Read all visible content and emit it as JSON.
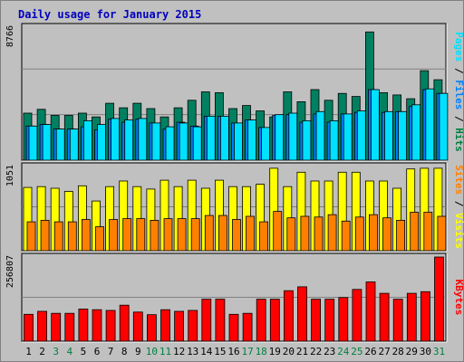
{
  "chart_data": [
    {
      "type": "bar",
      "title": "Daily usage for January 2015",
      "panel": "top",
      "ymax_label": "8766",
      "ylim": [
        0,
        8766
      ],
      "grid": true,
      "legend": [
        {
          "name": "Pages",
          "color": "#00E0FF"
        },
        {
          "name": "Files",
          "color": "#0080FF"
        },
        {
          "name": "Hits",
          "color": "#008040"
        }
      ],
      "series": [
        {
          "name": "Hits",
          "color": "#008060",
          "values": [
            3100,
            3350,
            2950,
            2950,
            3100,
            2850,
            3750,
            3450,
            3750,
            3400,
            2850,
            3450,
            3950,
            4500,
            4450,
            3400,
            3600,
            3250,
            2850,
            4500,
            3850,
            4650,
            3950,
            4400,
            4200,
            8450,
            4450,
            4300,
            4050,
            5900,
            5300
          ]
        },
        {
          "name": "Files",
          "color": "#0080FF",
          "values": [
            2250,
            2350,
            2050,
            2050,
            2200,
            2000,
            2700,
            2500,
            2700,
            2450,
            2050,
            2500,
            2250,
            2900,
            2900,
            2450,
            2650,
            2150,
            2950,
            3000,
            2500,
            3050,
            2500,
            3050,
            3150,
            4650,
            3150,
            3200,
            3550,
            4650,
            4400
          ]
        },
        {
          "name": "Pages",
          "color": "#00E0FF",
          "values": [
            2250,
            2350,
            2050,
            2050,
            2600,
            2350,
            2750,
            2650,
            2750,
            2450,
            2200,
            2450,
            2200,
            2900,
            2900,
            2450,
            2650,
            2150,
            3000,
            3100,
            2600,
            3200,
            2600,
            3050,
            3250,
            4650,
            3200,
            3200,
            3650,
            4700,
            4400
          ]
        }
      ]
    },
    {
      "type": "bar",
      "panel": "middle",
      "ymax_label": "1051",
      "ylim": [
        0,
        1051
      ],
      "grid": true,
      "legend": [
        {
          "name": "Sites",
          "color": "#FF8000"
        },
        {
          "name": "Visits",
          "color": "#FFFF00"
        }
      ],
      "series": [
        {
          "name": "Visits",
          "color": "#FFFF00",
          "values": [
            790,
            800,
            780,
            740,
            810,
            620,
            800,
            870,
            800,
            770,
            880,
            800,
            880,
            780,
            880,
            800,
            800,
            830,
            1030,
            800,
            980,
            870,
            870,
            980,
            980,
            870,
            870,
            780,
            1020,
            1030,
            1030
          ]
        },
        {
          "name": "Sites",
          "color": "#FF8000",
          "values": [
            360,
            380,
            360,
            360,
            390,
            300,
            390,
            400,
            400,
            380,
            400,
            400,
            400,
            440,
            440,
            390,
            430,
            360,
            490,
            410,
            430,
            420,
            450,
            370,
            420,
            450,
            410,
            380,
            480,
            480,
            430
          ]
        }
      ]
    },
    {
      "type": "bar",
      "panel": "bottom",
      "ymax_label": "256807",
      "ylim": [
        0,
        256807
      ],
      "grid": true,
      "legend": [
        {
          "name": "KBytes",
          "color": "#FF0000"
        }
      ],
      "series": [
        {
          "name": "KBytes",
          "color": "#FF0000",
          "values": [
            82000,
            91000,
            85000,
            85000,
            98000,
            96000,
            94000,
            110000,
            89000,
            81000,
            96000,
            91000,
            94000,
            128000,
            128000,
            82000,
            85000,
            128000,
            128000,
            154000,
            166000,
            128000,
            128000,
            133000,
            158000,
            181000,
            146000,
            128000,
            146000,
            151000,
            256807
          ]
        }
      ]
    }
  ],
  "x_labels": [
    "1",
    "2",
    "3",
    "4",
    "5",
    "6",
    "7",
    "8",
    "9",
    "10",
    "11",
    "12",
    "13",
    "14",
    "15",
    "16",
    "17",
    "18",
    "19",
    "20",
    "21",
    "22",
    "23",
    "24",
    "25",
    "26",
    "27",
    "28",
    "29",
    "30",
    "31"
  ],
  "weekend_days": [
    3,
    4,
    10,
    11,
    17,
    18,
    24,
    25,
    31
  ],
  "colors": {
    "plot_bg": "#C0C0C0",
    "title": "#0000C0",
    "weekday_label": "#000000",
    "weekend_label": "#008040"
  }
}
